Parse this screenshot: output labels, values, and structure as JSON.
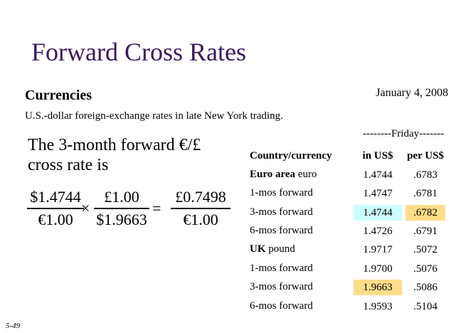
{
  "title": "Forward Cross Rates",
  "currencies_label": "Currencies",
  "date": "January 4, 2008",
  "subtitle": "U.S.-dollar foreign-exchange rates in late New York trading.",
  "left_text": {
    "line1": "The 3-month forward €/£",
    "line2": "cross rate is"
  },
  "equation": {
    "frac1_num": "$1.4744",
    "frac1_den": "€1.00",
    "times": "×",
    "frac2_num": "£1.00",
    "frac2_den": "$1.9663",
    "equals": "=",
    "frac3_num": "£0.7498",
    "frac3_den": "€1.00"
  },
  "table": {
    "group_header": "--------Friday-------",
    "col_country": "Country/currency",
    "col_usd": "in US$",
    "col_per_usd": "per US$",
    "rows": [
      {
        "country_bold": "Euro area",
        "country_rest": " euro",
        "in_usd": "1.4744",
        "per_usd": ".6783"
      },
      {
        "country_bold": "",
        "country_rest": "1-mos forward",
        "in_usd": "1.4747",
        "per_usd": ".6781"
      },
      {
        "country_bold": "",
        "country_rest": "3-mos forward",
        "in_usd": "1.4744",
        "per_usd": ".6782"
      },
      {
        "country_bold": "",
        "country_rest": "6-mos forward",
        "in_usd": "1.4726",
        "per_usd": ".6791"
      },
      {
        "country_bold": "UK",
        "country_rest": " pound",
        "in_usd": "1.9717",
        "per_usd": ".5072"
      },
      {
        "country_bold": "",
        "country_rest": "1-mos forward",
        "in_usd": "1.9700",
        "per_usd": ".5076"
      },
      {
        "country_bold": "",
        "country_rest": "3-mos forward",
        "in_usd": "1.9663",
        "per_usd": ".5086"
      },
      {
        "country_bold": "",
        "country_rest": "6-mos forward",
        "in_usd": "1.9593",
        "per_usd": ".5104"
      }
    ]
  },
  "highlight_colors": {
    "blue": "#ccffff",
    "yellow": "#ffdd88"
  },
  "page_number": "5-49"
}
